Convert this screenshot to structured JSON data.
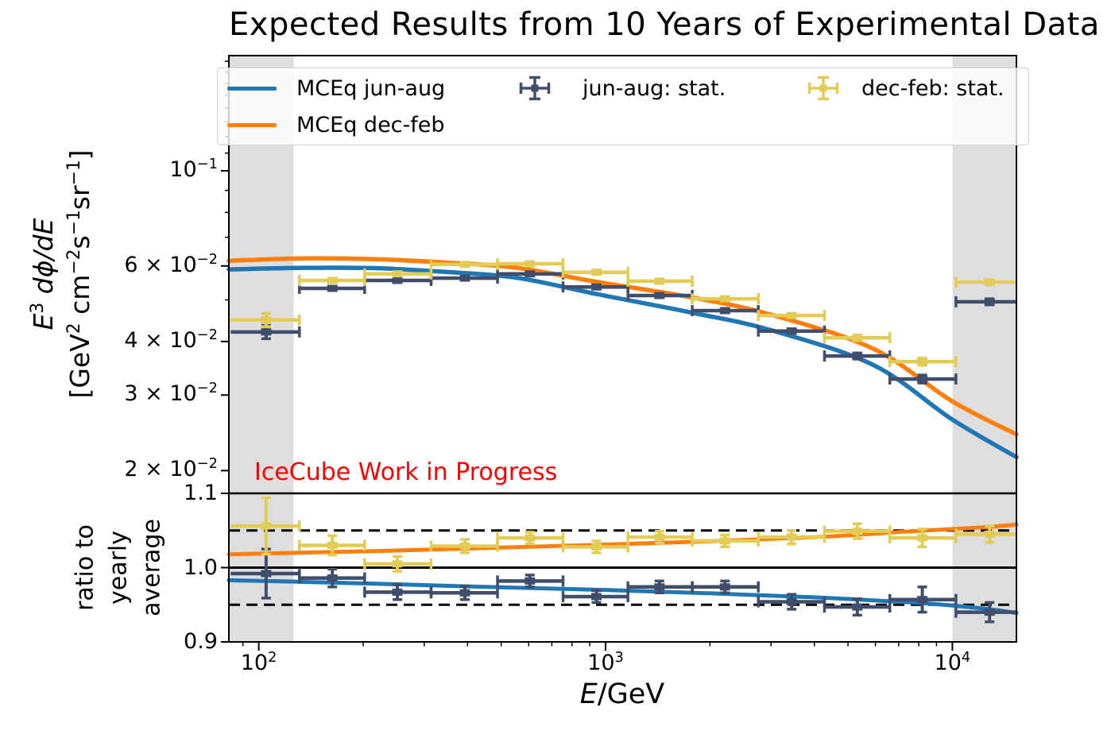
{
  "title": "Expected Results from 10 Years of Experimental Data",
  "watermark": {
    "text": "IceCube Work in Progress",
    "color": "#ff0000"
  },
  "legend": {
    "entries": [
      {
        "label": "MCEq jun-aug",
        "type": "line",
        "color": "#1f77b4"
      },
      {
        "label": "MCEq dec-feb",
        "type": "line",
        "color": "#ff7f0e"
      },
      {
        "label": "jun-aug: stat.",
        "type": "errorbar",
        "color": "#404e6b"
      },
      {
        "label": "dec-feb: stat.",
        "type": "errorbar",
        "color": "#e2cc55"
      }
    ]
  },
  "chart_data": {
    "type": "line+errorbar",
    "x_axis": {
      "label": "*E*/GeV",
      "scale": "log",
      "min": 82,
      "max": 15300,
      "major_ticks": [
        100,
        1000,
        10000
      ],
      "major_tick_labels": [
        "10^{2}",
        "10^{3}",
        "10^{4}"
      ],
      "minor_ticks": [
        90,
        200,
        300,
        400,
        500,
        600,
        700,
        800,
        900,
        2000,
        3000,
        4000,
        5000,
        6000,
        7000,
        8000,
        9000
      ]
    },
    "y_main_axis": {
      "label_line1": "*E*^{3} *dϕ/dE*",
      "label_line2": "[GeV^{2} cm^{−2}s^{−1}sr^{−1}]",
      "scale": "log",
      "min": 0.0177,
      "max": 0.1856,
      "labeled_ticks": [
        {
          "v": 0.1,
          "label": "10^{−1}"
        },
        {
          "v": 0.06,
          "label": "6 × 10^{−2}"
        },
        {
          "v": 0.04,
          "label": "4 × 10^{−2}"
        },
        {
          "v": 0.03,
          "label": "3 × 10^{−2}"
        },
        {
          "v": 0.02,
          "label": "2 × 10^{−2}"
        }
      ],
      "minor_ticks": [
        0.05,
        0.07,
        0.08,
        0.09,
        0.11,
        0.12,
        0.13,
        0.14,
        0.15,
        0.16,
        0.17,
        0.18
      ]
    },
    "y_ratio_axis": {
      "label_lines": [
        "ratio to",
        "yearly",
        "average"
      ],
      "scale": "linear",
      "min": 0.9,
      "max": 1.1,
      "labeled_ticks": [
        {
          "v": 1.1,
          "label": "1.1"
        },
        {
          "v": 1.0,
          "label": "1.0"
        },
        {
          "v": 0.9,
          "label": "0.9"
        }
      ],
      "solid_line": 1.0,
      "dashed_lines": [
        0.95,
        1.05
      ]
    },
    "shaded_bands_gev": [
      [
        82,
        126
      ],
      [
        10000,
        15300
      ]
    ],
    "band_color": "#dedede",
    "curves": [
      {
        "name": "MCEq jun-aug",
        "color": "#1f77b4",
        "E": [
          82,
          134,
          216,
          346,
          556,
          941,
          1770,
          3000,
          5940,
          10000,
          15300
        ],
        "e3_flux": [
          0.0589,
          0.0594,
          0.0593,
          0.0581,
          0.0563,
          0.0516,
          0.0467,
          0.0425,
          0.0352,
          0.0263,
          0.0215
        ],
        "ratio_E": [
          82,
          130,
          250,
          500,
          1000,
          2000,
          4000,
          8000,
          12000,
          15300
        ],
        "ratio": [
          0.983,
          0.981,
          0.9775,
          0.9735,
          0.97,
          0.9655,
          0.96,
          0.9525,
          0.9455,
          0.939
        ]
      },
      {
        "name": "MCEq dec-feb",
        "color": "#ff7f0e",
        "E": [
          82,
          134,
          216,
          346,
          556,
          941,
          1770,
          3000,
          5940,
          10000,
          15300
        ],
        "e3_flux": [
          0.0617,
          0.0625,
          0.0622,
          0.0611,
          0.0594,
          0.0551,
          0.0507,
          0.0462,
          0.0384,
          0.029,
          0.0243
        ],
        "ratio_E": [
          82,
          130,
          250,
          500,
          1000,
          2000,
          4000,
          8000,
          12000,
          15300
        ],
        "ratio": [
          1.018,
          1.02,
          1.023,
          1.027,
          1.031,
          1.0355,
          1.041,
          1.0495,
          1.054,
          1.058
        ]
      }
    ],
    "points": [
      {
        "name": "jun-aug: stat.",
        "color": "#404e6b",
        "bin_edges": [
          83,
          131,
          202,
          314,
          488,
          754,
          1160,
          1778,
          2757,
          4278,
          6601,
          10240,
          15800
        ],
        "E": [
          105,
          163,
          251,
          393,
          605,
          941,
          1430,
          2210,
          3440,
          5320,
          8190,
          12800
        ],
        "e3_flux": [
          0.0421,
          0.0532,
          0.0555,
          0.0562,
          0.0575,
          0.0536,
          0.0512,
          0.0472,
          0.0423,
          0.037,
          0.0327,
          0.0495
        ],
        "e3_flux_err": [
          0.0015,
          0.0005,
          0.0004,
          0.0004,
          0.0004,
          0.0004,
          0.0004,
          0.0005,
          0.0005,
          0.0006,
          0.0007,
          0.0008
        ],
        "ratio": [
          0.992,
          0.986,
          0.967,
          0.966,
          0.982,
          0.961,
          0.974,
          0.974,
          0.954,
          0.947,
          0.957,
          0.94
        ],
        "ratio_err": [
          0.033,
          0.012,
          0.01,
          0.009,
          0.008,
          0.008,
          0.008,
          0.008,
          0.01,
          0.011,
          0.017,
          0.013
        ]
      },
      {
        "name": "dec-feb: stat.",
        "color": "#e2cc55",
        "bin_edges": [
          83,
          131,
          202,
          314,
          488,
          754,
          1160,
          1778,
          2757,
          4278,
          6601,
          10240,
          15800
        ],
        "E": [
          105,
          163,
          251,
          393,
          605,
          941,
          1430,
          2210,
          3440,
          5320,
          8190,
          12800
        ],
        "e3_flux": [
          0.0449,
          0.0555,
          0.0575,
          0.0605,
          0.0607,
          0.058,
          0.0553,
          0.0503,
          0.046,
          0.0408,
          0.0359,
          0.055
        ],
        "e3_flux_err": [
          0.0016,
          0.0005,
          0.0004,
          0.0004,
          0.0004,
          0.0004,
          0.0004,
          0.0005,
          0.0005,
          0.0006,
          0.0007,
          0.0008
        ],
        "ratio": [
          1.056,
          1.03,
          1.005,
          1.029,
          1.04,
          1.028,
          1.041,
          1.036,
          1.041,
          1.049,
          1.04,
          1.045
        ],
        "ratio_err": [
          0.038,
          0.013,
          0.01,
          0.009,
          0.008,
          0.008,
          0.008,
          0.008,
          0.009,
          0.01,
          0.012,
          0.011
        ]
      }
    ]
  }
}
